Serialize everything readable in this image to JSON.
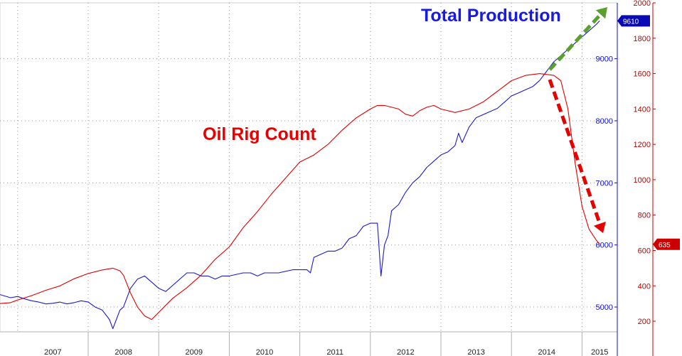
{
  "chart_data": {
    "type": "line",
    "title": "",
    "xlabel": "",
    "annotations": {
      "production": "Total Production",
      "rigs": "Oil Rig Count"
    },
    "x_ticks": [
      "2007",
      "2008",
      "2009",
      "2010",
      "2011",
      "2012",
      "2013",
      "2014",
      "2015"
    ],
    "x_range": [
      2006.75,
      2015.5
    ],
    "grid": true,
    "axes": {
      "production": {
        "side": "right",
        "ylim": [
          4600,
          9900
        ],
        "ticks": [
          5000,
          6000,
          7000,
          8000,
          9000
        ],
        "color": "#1010c0"
      },
      "rigs": {
        "side": "right-outer",
        "ylim": [
          140,
          2000
        ],
        "ticks": [
          200,
          400,
          600,
          800,
          1000,
          1200,
          1400,
          1600,
          1800,
          2000
        ],
        "color": "#c00000"
      }
    },
    "series": [
      {
        "key": "production",
        "color": "#1a1ad0",
        "last_value": "9610",
        "x": [
          2006.75,
          2006.9,
          2007.0,
          2007.1,
          2007.2,
          2007.3,
          2007.4,
          2007.5,
          2007.6,
          2007.7,
          2007.8,
          2007.9,
          2008.0,
          2008.1,
          2008.2,
          2008.3,
          2008.35,
          2008.4,
          2008.45,
          2008.5,
          2008.6,
          2008.7,
          2008.8,
          2008.9,
          2009.0,
          2009.1,
          2009.2,
          2009.3,
          2009.4,
          2009.5,
          2009.6,
          2009.7,
          2009.8,
          2009.9,
          2010.0,
          2010.2,
          2010.3,
          2010.4,
          2010.5,
          2010.7,
          2010.9,
          2011.0,
          2011.1,
          2011.15,
          2011.2,
          2011.3,
          2011.4,
          2011.5,
          2011.6,
          2011.7,
          2011.8,
          2011.9,
          2012.0,
          2012.1,
          2012.15,
          2012.2,
          2012.25,
          2012.3,
          2012.4,
          2012.5,
          2012.6,
          2012.7,
          2012.8,
          2012.9,
          2013.0,
          2013.1,
          2013.2,
          2013.25,
          2013.3,
          2013.4,
          2013.5,
          2013.6,
          2013.7,
          2013.8,
          2013.9,
          2014.0,
          2014.1,
          2014.2,
          2014.3,
          2014.4,
          2014.5,
          2014.6,
          2014.7,
          2014.8,
          2014.9,
          2015.0,
          2015.1,
          2015.2,
          2015.25
        ],
        "y": [
          5200,
          5150,
          5170,
          5130,
          5100,
          5080,
          5050,
          5060,
          5080,
          5050,
          5070,
          5100,
          5080,
          5000,
          4950,
          4800,
          4650,
          4800,
          4950,
          5000,
          5300,
          5450,
          5500,
          5400,
          5300,
          5250,
          5350,
          5450,
          5550,
          5550,
          5500,
          5500,
          5450,
          5500,
          5500,
          5550,
          5550,
          5500,
          5550,
          5550,
          5600,
          5600,
          5600,
          5550,
          5800,
          5850,
          5900,
          5900,
          5950,
          6100,
          6150,
          6300,
          6350,
          6350,
          5500,
          6000,
          6150,
          6550,
          6650,
          6850,
          7000,
          7100,
          7250,
          7350,
          7450,
          7500,
          7600,
          7800,
          7650,
          7900,
          8050,
          8100,
          8150,
          8200,
          8300,
          8400,
          8450,
          8500,
          8550,
          8650,
          8800,
          8950,
          9050,
          9150,
          9250,
          9350,
          9450,
          9550,
          9610
        ]
      },
      {
        "key": "rigs",
        "color": "#e00000",
        "last_value": "635",
        "x": [
          2006.75,
          2006.9,
          2007.0,
          2007.2,
          2007.4,
          2007.6,
          2007.8,
          2008.0,
          2008.2,
          2008.35,
          2008.45,
          2008.5,
          2008.6,
          2008.7,
          2008.8,
          2008.9,
          2009.0,
          2009.2,
          2009.4,
          2009.6,
          2009.8,
          2010.0,
          2010.2,
          2010.4,
          2010.6,
          2010.8,
          2011.0,
          2011.2,
          2011.4,
          2011.6,
          2011.8,
          2012.0,
          2012.1,
          2012.2,
          2012.3,
          2012.4,
          2012.5,
          2012.6,
          2012.7,
          2012.8,
          2012.9,
          2013.0,
          2013.2,
          2013.4,
          2013.6,
          2013.8,
          2014.0,
          2014.2,
          2014.4,
          2014.6,
          2014.7,
          2014.8,
          2014.9,
          2015.0,
          2015.1,
          2015.2,
          2015.25
        ],
        "y": [
          300,
          305,
          320,
          345,
          375,
          400,
          440,
          470,
          490,
          500,
          485,
          460,
          360,
          280,
          230,
          210,
          250,
          330,
          390,
          460,
          550,
          620,
          730,
          820,
          920,
          1010,
          1100,
          1140,
          1200,
          1280,
          1350,
          1400,
          1420,
          1420,
          1410,
          1400,
          1370,
          1360,
          1390,
          1410,
          1420,
          1400,
          1380,
          1400,
          1440,
          1500,
          1560,
          1590,
          1600,
          1590,
          1560,
          1400,
          1100,
          850,
          720,
          660,
          635
        ]
      }
    ]
  }
}
